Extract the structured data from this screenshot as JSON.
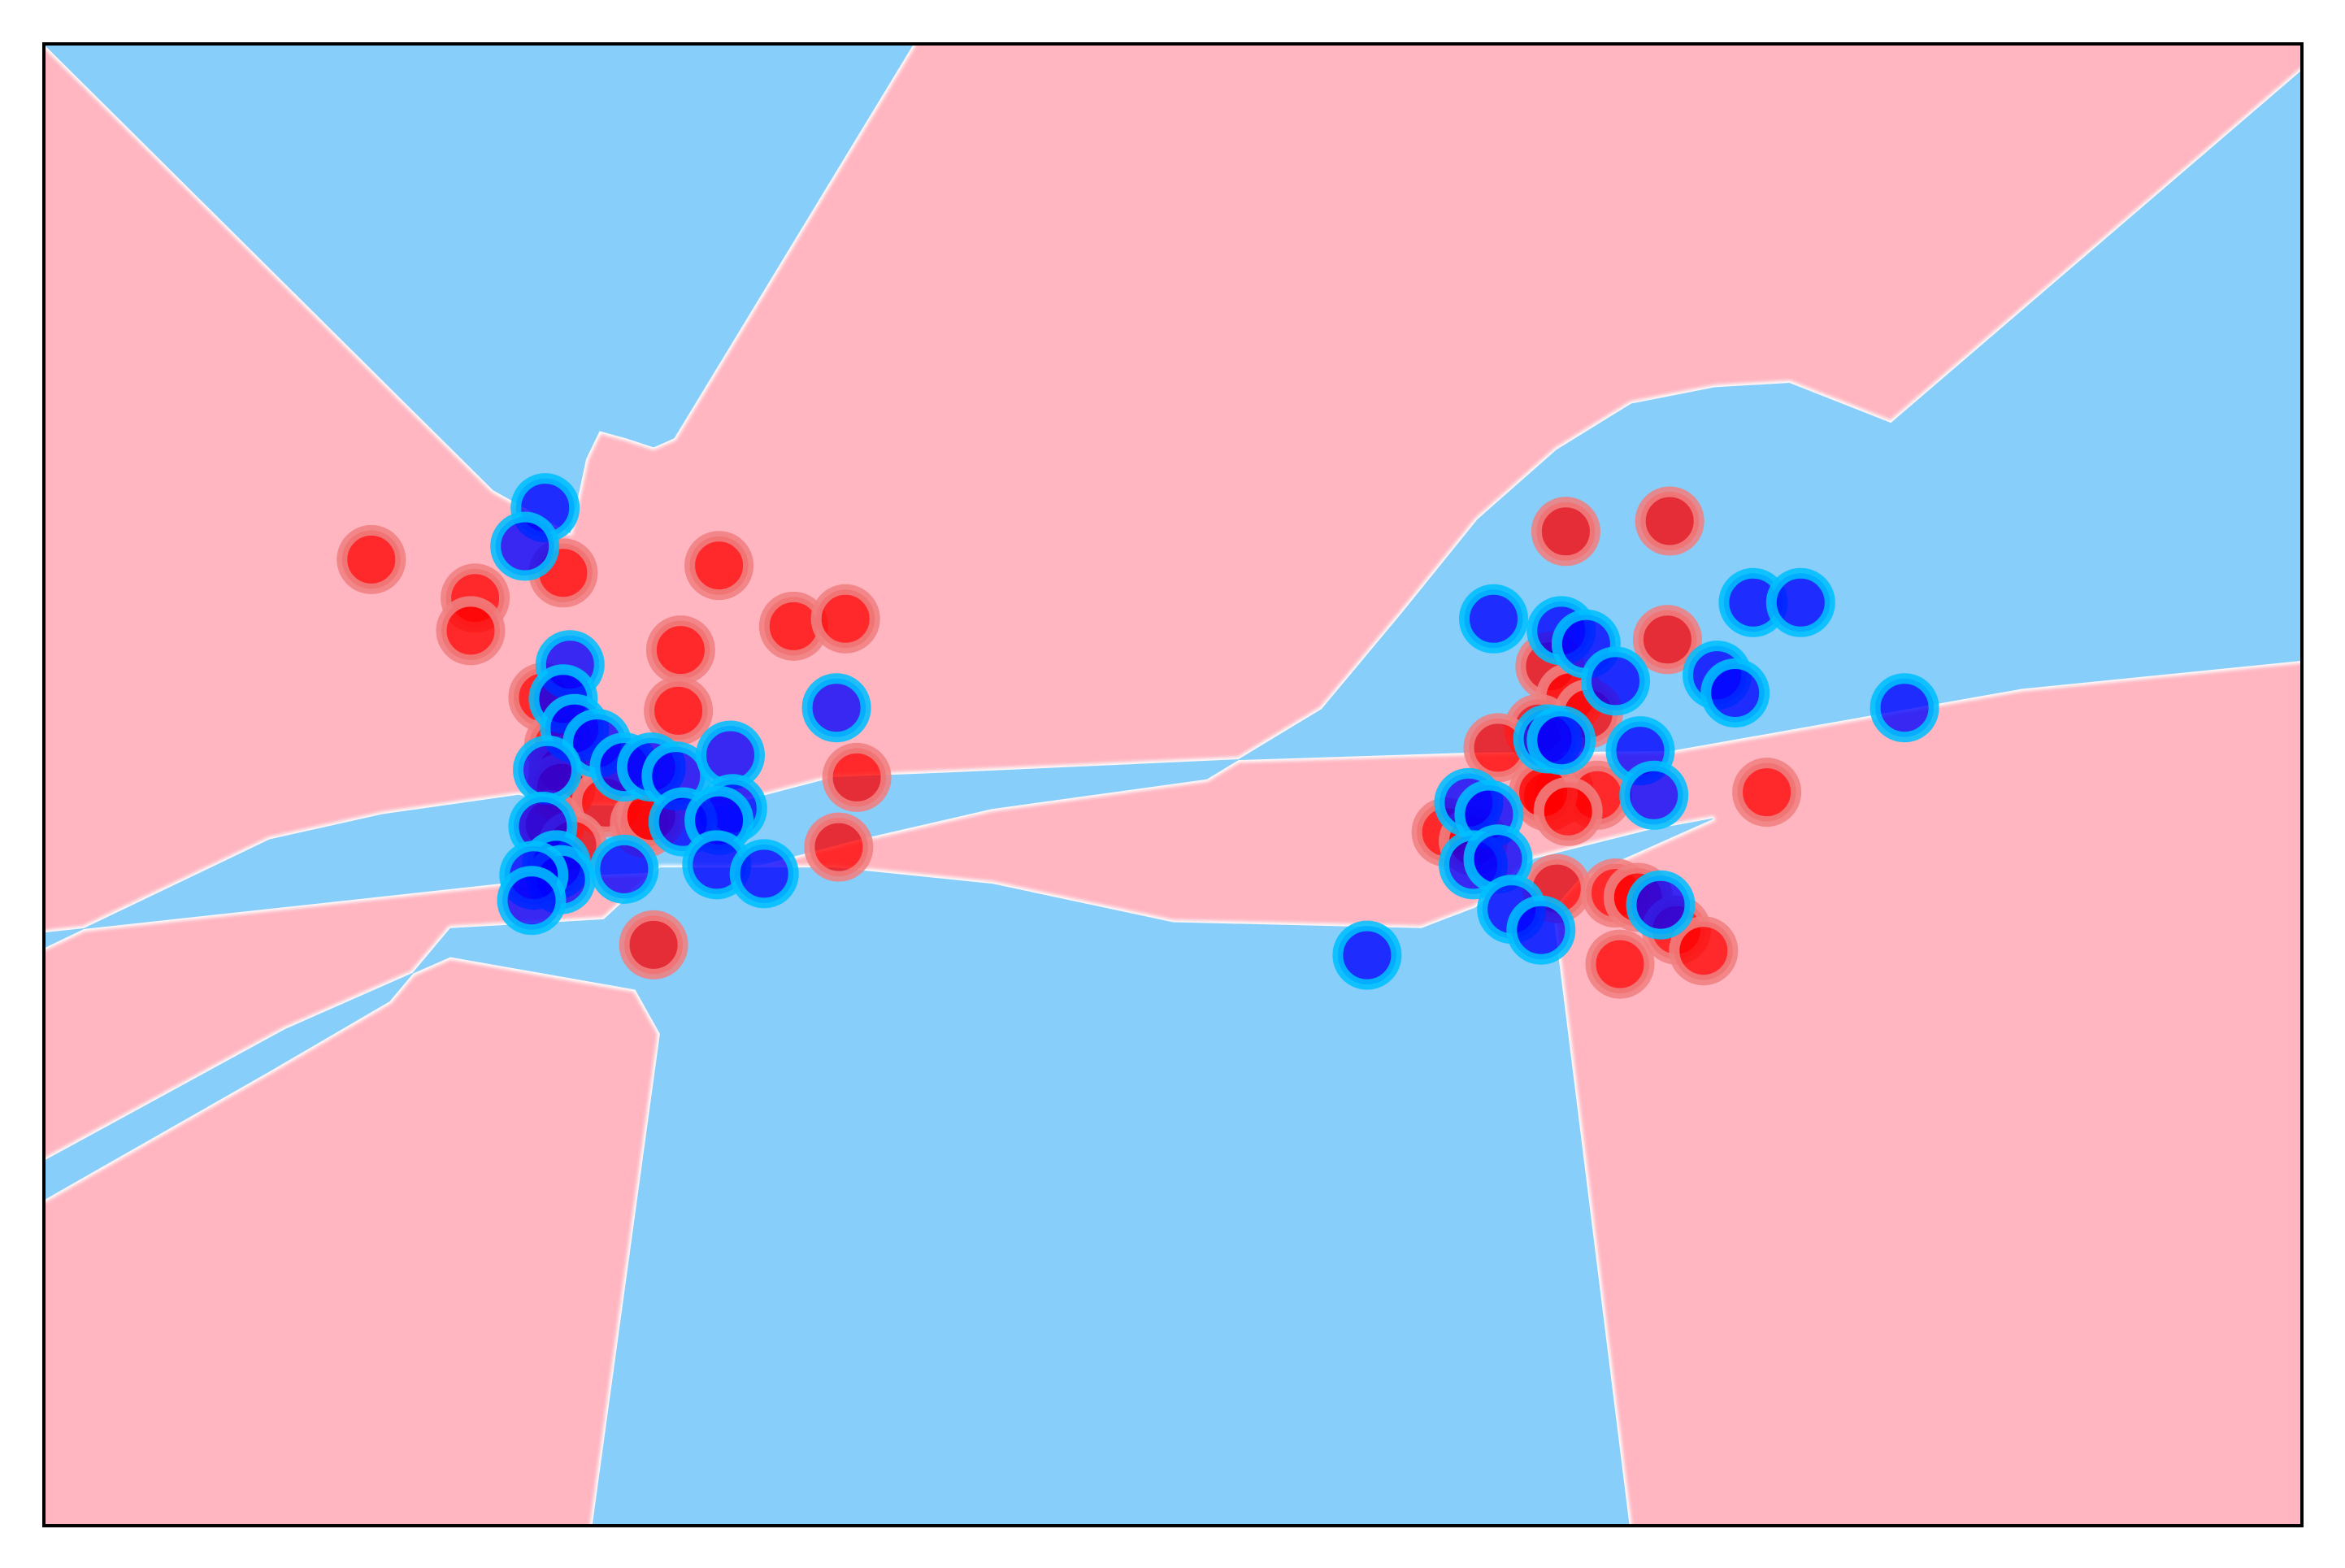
{
  "chart_data": {
    "type": "scatter",
    "title": "",
    "xlabel": "",
    "ylabel": "",
    "xlim": [
      0,
      100
    ],
    "ylim": [
      0,
      100
    ],
    "ticks": "none",
    "grid": false,
    "legend": "none",
    "background": {
      "kind": "decision-regions",
      "colors": {
        "class_red": "#ffb6c1",
        "class_blue": "#87cefa",
        "boundary": "#ffffff"
      },
      "regions": [
        {
          "class": "blue",
          "polygon": [
            [
              0,
              100
            ],
            [
              38.5,
              100
            ],
            [
              27.9,
              73.4
            ],
            [
              27,
              72.8
            ],
            [
              25.8,
              73.4
            ],
            [
              24.6,
              73.9
            ],
            [
              24,
              72
            ],
            [
              23.3,
              67
            ],
            [
              19.9,
              69.9
            ],
            [
              0,
              100
            ]
          ]
        },
        {
          "class": "blue",
          "polygon": [
            [
              0,
              40
            ],
            [
              23.5,
              43.9
            ],
            [
              31,
              44.3
            ],
            [
              36,
              46.3
            ],
            [
              42,
              48.4
            ],
            [
              51.5,
              50.4
            ],
            [
              56.6,
              55.1
            ],
            [
              60.1,
              61.5
            ],
            [
              63.5,
              67.9
            ],
            [
              67,
              72.6
            ],
            [
              70.3,
              75.7
            ],
            [
              74,
              76.8
            ],
            [
              77.3,
              77.1
            ],
            [
              81.8,
              74.4
            ],
            [
              100,
              98.2
            ],
            [
              100,
              58.4
            ],
            [
              87.6,
              56.5
            ],
            [
              72,
              52.3
            ],
            [
              63.2,
              52.2
            ],
            [
              53,
              51.7
            ],
            [
              40,
              50.8
            ],
            [
              35,
              50.5
            ],
            [
              30,
              48.5
            ],
            [
              23.5,
              48.6
            ],
            [
              21,
              49.3
            ],
            [
              15,
              48
            ],
            [
              10,
              46.3
            ],
            [
              0,
              39
            ]
          ]
        },
        {
          "class": "blue",
          "polygon": [
            [
              0,
              22
            ],
            [
              9.9,
              30.6
            ],
            [
              15.3,
              35.4
            ],
            [
              18,
              40.3
            ],
            [
              24.8,
              40.9
            ],
            [
              27.3,
              44.4
            ],
            [
              35,
              44.4
            ],
            [
              42,
              43.3
            ],
            [
              50,
              40.7
            ],
            [
              61,
              40.3
            ],
            [
              63.4,
              41.7
            ],
            [
              66,
              45
            ],
            [
              71,
              46.9
            ],
            [
              73.9,
              47.7
            ],
            [
              68,
              43.7
            ],
            [
              66.8,
              41.6
            ],
            [
              70.2,
              0
            ],
            [
              24.3,
              0
            ],
            [
              27.3,
              33.2
            ],
            [
              26.2,
              36.2
            ],
            [
              18,
              38.4
            ],
            [
              10.7,
              33.5
            ],
            [
              0,
              24.6
            ]
          ]
        }
      ]
    },
    "series": [
      {
        "color": "#ff0000",
        "edge_color": "#f08080",
        "points": [
          [
            14.5,
            65.2
          ],
          [
            19.1,
            62.6
          ],
          [
            18.9,
            60.4
          ],
          [
            23.0,
            64.3
          ],
          [
            29.9,
            64.8
          ],
          [
            33.2,
            60.7
          ],
          [
            28.2,
            59.1
          ],
          [
            35.5,
            61.2
          ],
          [
            22.1,
            55.9
          ],
          [
            22.8,
            52.7
          ],
          [
            28.1,
            55.0
          ],
          [
            23.0,
            51.0
          ],
          [
            22.9,
            49.8
          ],
          [
            24.9,
            48.8
          ],
          [
            26.6,
            47.4
          ],
          [
            22.4,
            47.3
          ],
          [
            23.4,
            45.9
          ],
          [
            36.0,
            50.5
          ],
          [
            26.9,
            47.9
          ],
          [
            35.2,
            45.8
          ],
          [
            27.0,
            39.2
          ],
          [
            67.4,
            67.1
          ],
          [
            72.0,
            67.8
          ],
          [
            71.9,
            59.8
          ],
          [
            66.7,
            58.0
          ],
          [
            67.6,
            55.9
          ],
          [
            66.2,
            53.8
          ],
          [
            68.4,
            54.8
          ],
          [
            64.4,
            52.5
          ],
          [
            67.1,
            49.6
          ],
          [
            66.6,
            49.2
          ],
          [
            68.8,
            49.3
          ],
          [
            62.1,
            46.8
          ],
          [
            63.3,
            46.2
          ],
          [
            66.4,
            49.5
          ],
          [
            67.5,
            48.2
          ],
          [
            76.3,
            49.5
          ],
          [
            67.0,
            43.0
          ],
          [
            69.6,
            42.7
          ],
          [
            70.6,
            42.4
          ],
          [
            72.3,
            40.2
          ],
          [
            73.5,
            38.8
          ],
          [
            69.8,
            37.9
          ]
        ]
      },
      {
        "color": "#0000ff",
        "edge_color": "#00bfff",
        "points": [
          [
            22.2,
            68.7
          ],
          [
            21.3,
            66.1
          ],
          [
            23.3,
            58.1
          ],
          [
            23.0,
            55.8
          ],
          [
            23.5,
            53.8
          ],
          [
            24.5,
            52.8
          ],
          [
            22.3,
            51.0
          ],
          [
            25.7,
            51.2
          ],
          [
            26.9,
            51.2
          ],
          [
            28.0,
            50.6
          ],
          [
            30.4,
            52.0
          ],
          [
            30.5,
            48.4
          ],
          [
            35.1,
            55.2
          ],
          [
            22.1,
            47.2
          ],
          [
            22.7,
            44.6
          ],
          [
            22.9,
            43.6
          ],
          [
            21.7,
            43.9
          ],
          [
            21.6,
            42.2
          ],
          [
            25.7,
            44.3
          ],
          [
            28.3,
            47.5
          ],
          [
            29.9,
            47.6
          ],
          [
            29.8,
            44.6
          ],
          [
            31.9,
            44.0
          ],
          [
            64.2,
            61.2
          ],
          [
            67.2,
            60.4
          ],
          [
            68.3,
            59.5
          ],
          [
            69.6,
            57.0
          ],
          [
            74.1,
            57.4
          ],
          [
            74.9,
            56.2
          ],
          [
            75.7,
            62.3
          ],
          [
            77.8,
            62.3
          ],
          [
            82.4,
            55.2
          ],
          [
            66.6,
            53.1
          ],
          [
            67.2,
            53.0
          ],
          [
            70.7,
            52.3
          ],
          [
            71.3,
            49.3
          ],
          [
            63.1,
            48.8
          ],
          [
            64.0,
            48.0
          ],
          [
            63.3,
            44.6
          ],
          [
            64.4,
            45.0
          ],
          [
            65.0,
            41.6
          ],
          [
            66.3,
            40.2
          ],
          [
            71.6,
            41.9
          ],
          [
            58.6,
            38.5
          ]
        ]
      }
    ]
  }
}
